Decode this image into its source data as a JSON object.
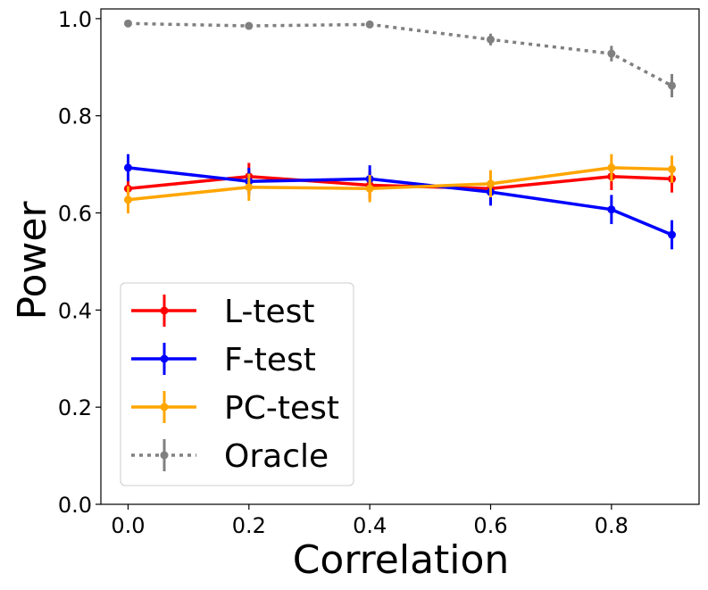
{
  "chart_data": {
    "type": "line",
    "title": "",
    "xlabel": "Correlation",
    "ylabel": "Power",
    "x": [
      0.0,
      0.2,
      0.4,
      0.6,
      0.8,
      0.9
    ],
    "xlim": [
      -0.045,
      0.945
    ],
    "ylim": [
      0.0,
      1.02
    ],
    "xticks": [
      0.0,
      0.2,
      0.4,
      0.6,
      0.8
    ],
    "xtick_labels": [
      "0.0",
      "0.2",
      "0.4",
      "0.6",
      "0.8"
    ],
    "yticks": [
      0.0,
      0.2,
      0.4,
      0.6,
      0.8,
      1.0
    ],
    "ytick_labels": [
      "0.0",
      "0.2",
      "0.4",
      "0.6",
      "0.8",
      "1.0"
    ],
    "grid": false,
    "legend_position": "lower-left",
    "series": [
      {
        "name": "L-test",
        "color": "#ff0000",
        "style": "solid",
        "values": [
          0.65,
          0.675,
          0.657,
          0.65,
          0.675,
          0.67
        ],
        "errors": [
          0.028,
          0.028,
          0.028,
          0.028,
          0.028,
          0.028
        ]
      },
      {
        "name": "F-test",
        "color": "#0000ff",
        "style": "solid",
        "values": [
          0.693,
          0.665,
          0.67,
          0.643,
          0.607,
          0.555
        ],
        "errors": [
          0.028,
          0.028,
          0.028,
          0.028,
          0.03,
          0.03
        ]
      },
      {
        "name": "PC-test",
        "color": "#ffa500",
        "style": "solid",
        "values": [
          0.627,
          0.653,
          0.65,
          0.66,
          0.693,
          0.69
        ],
        "errors": [
          0.028,
          0.028,
          0.028,
          0.028,
          0.028,
          0.028
        ]
      },
      {
        "name": "Oracle",
        "color": "#808080",
        "style": "dotted",
        "values": [
          0.99,
          0.985,
          0.988,
          0.957,
          0.928,
          0.862
        ],
        "errors": [
          0.004,
          0.006,
          0.005,
          0.012,
          0.016,
          0.024
        ]
      }
    ]
  }
}
